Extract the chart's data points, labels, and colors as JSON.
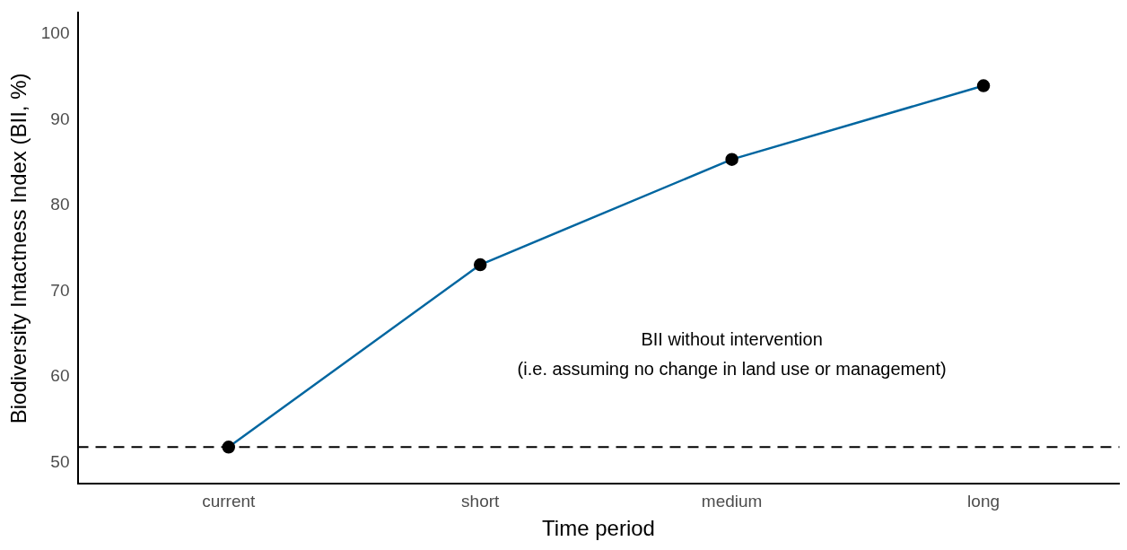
{
  "chart_data": {
    "type": "line",
    "xlabel": "Time period",
    "ylabel": "Biodiversity Intactness Index (BII, %)",
    "categories": [
      "current",
      "short",
      "medium",
      "long"
    ],
    "series": [
      {
        "color": "#0066a0",
        "values": [
          51.8,
          73.1,
          85.4,
          94.0
        ]
      }
    ],
    "ylim": [
      47.5,
      102.5
    ],
    "yticks": [
      50,
      60,
      70,
      80,
      90,
      100
    ],
    "grid": false,
    "legend": false,
    "marker": "circle",
    "line_style": "solid",
    "ref_lines": [
      {
        "axis": "y",
        "value": 51.8,
        "line_style": "dashed",
        "color": "#000000"
      }
    ],
    "annotations": [
      "BII without intervention",
      "(i.e. assuming no change in land use or management)"
    ]
  }
}
